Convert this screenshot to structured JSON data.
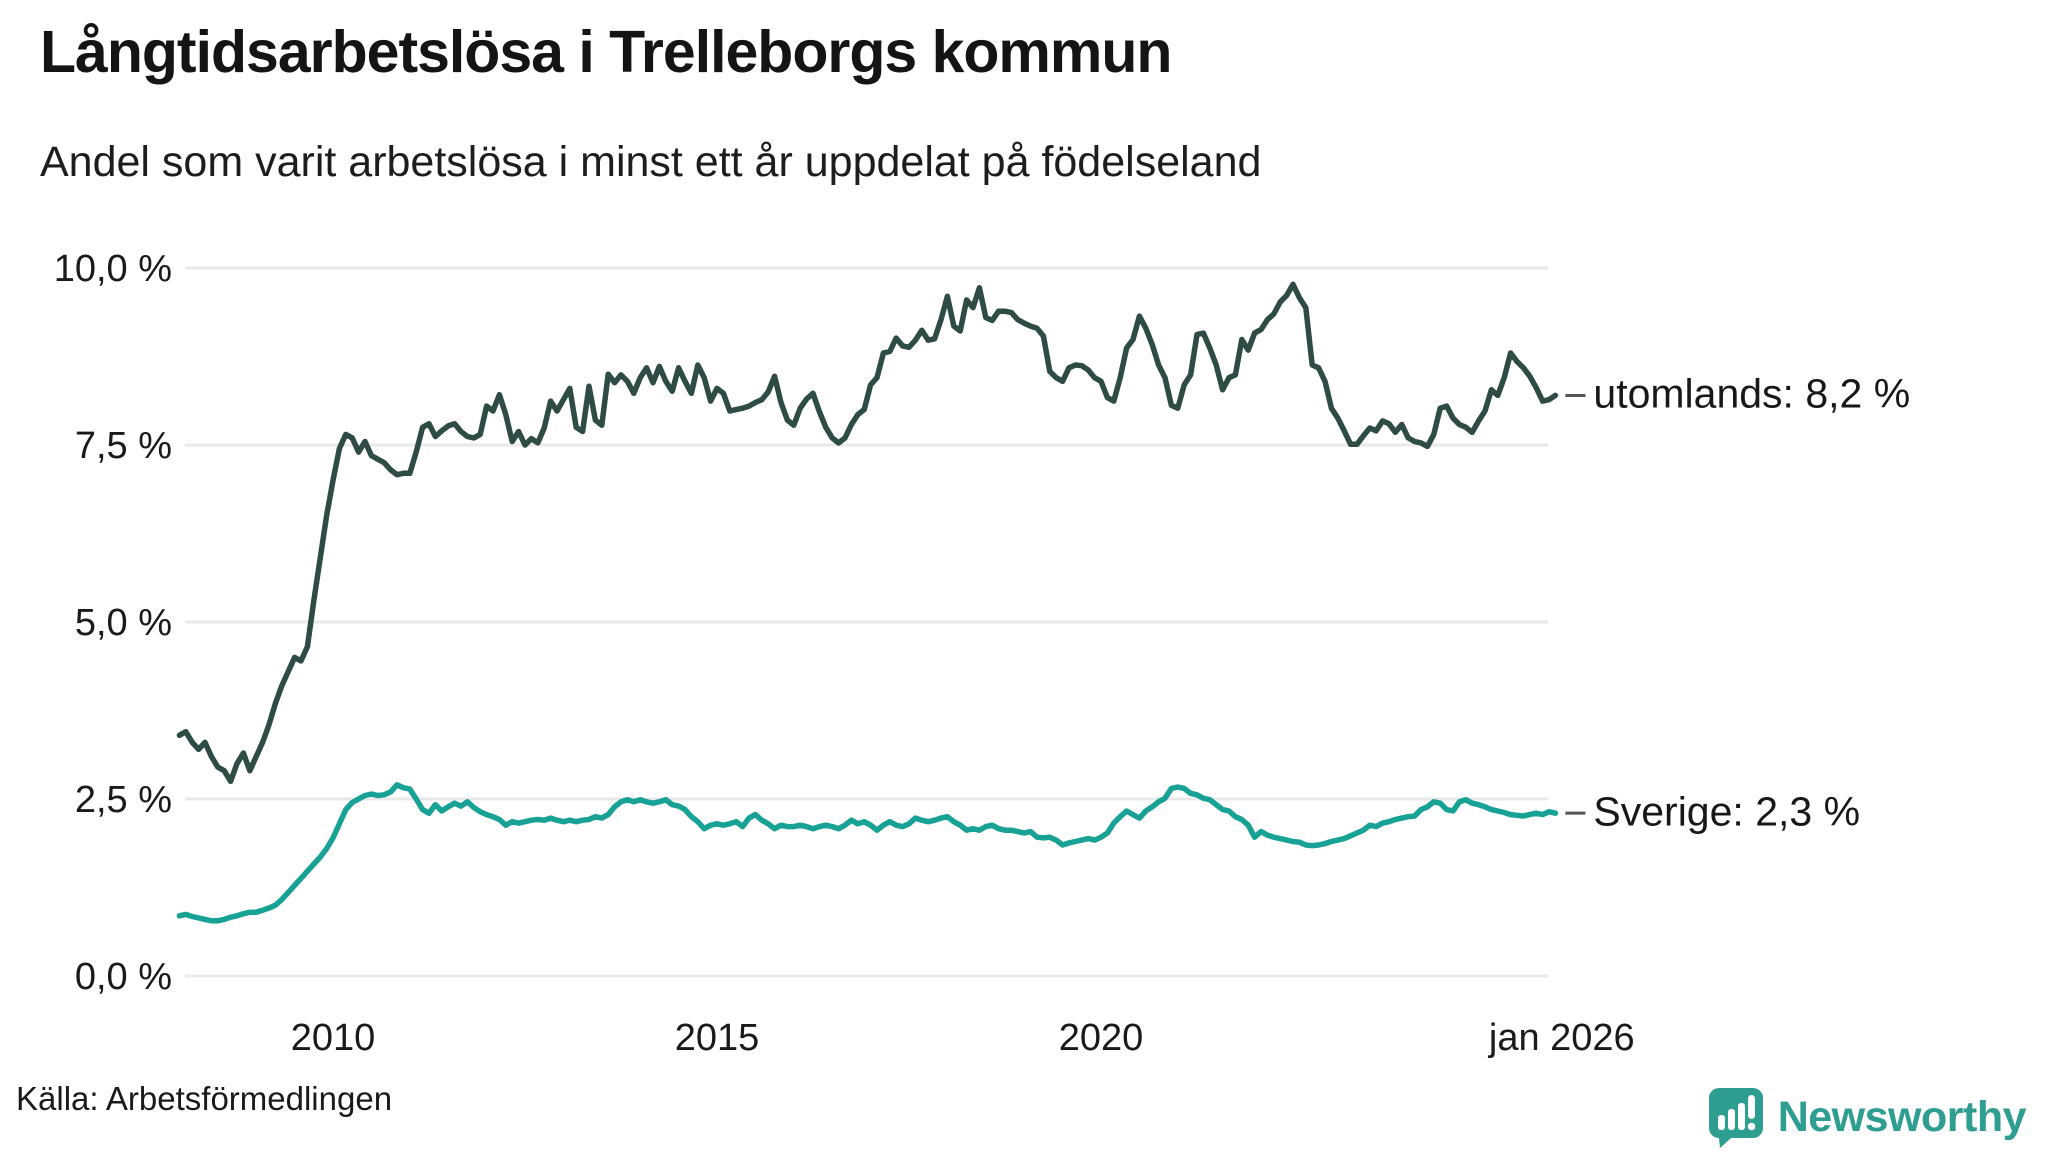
{
  "header": {
    "title": "Långtidsarbetslösa i Trelleborgs kommun",
    "subtitle": "Andel som varit arbetslösa i minst ett år uppdelat på födelseland"
  },
  "footer": {
    "source": "Källa: Arbetsförmedlingen",
    "logo_text": "Newsworthy",
    "logo_color": "#2e9e91"
  },
  "chart_data": {
    "type": "line",
    "title": "Långtidsarbetslösa i Trelleborgs kommun",
    "subtitle": "Andel som varit arbetslösa i minst ett år uppdelat på födelseland",
    "x_start_year": 2008,
    "x_start_month": 1,
    "x_step": "monthly",
    "x_end_label": "jan 2026",
    "ylim": [
      0,
      10.0
    ],
    "grid": "horizontal",
    "gridline_color": "#e9e9ec",
    "legend_position": "end-of-line-labels",
    "y_ticks": [
      {
        "label": "10,0 %",
        "value": 10.0
      },
      {
        "label": "7,5 %",
        "value": 7.5
      },
      {
        "label": "5,0 %",
        "value": 5.0
      },
      {
        "label": "2,5 %",
        "value": 2.5
      },
      {
        "label": "0,0 %",
        "value": 0.0
      }
    ],
    "x_ticks": [
      {
        "label": "2010",
        "t": 2010.0
      },
      {
        "label": "2015",
        "t": 2015.0
      },
      {
        "label": "2020",
        "t": 2020.0
      },
      {
        "label": "jan 2026",
        "t": 2026.0
      }
    ],
    "series": [
      {
        "name": "utomlands",
        "label": "utomlands: 8,2 %",
        "end_value_label": "8,2 %",
        "color": "#2e4b45",
        "values": [
          3.4,
          3.45,
          3.3,
          3.2,
          3.3,
          3.1,
          2.95,
          2.9,
          2.75,
          3.0,
          3.15,
          2.9,
          3.1,
          3.3,
          3.55,
          3.85,
          4.1,
          4.3,
          4.5,
          4.45,
          4.65,
          5.3,
          5.9,
          6.5,
          7.0,
          7.45,
          7.65,
          7.6,
          7.4,
          7.55,
          7.35,
          7.3,
          7.25,
          7.15,
          7.08,
          7.1,
          7.1,
          7.4,
          7.75,
          7.8,
          7.62,
          7.7,
          7.77,
          7.8,
          7.69,
          7.62,
          7.6,
          7.65,
          8.05,
          7.98,
          8.21,
          7.93,
          7.55,
          7.69,
          7.5,
          7.59,
          7.53,
          7.74,
          8.12,
          7.98,
          8.14,
          8.3,
          7.75,
          7.69,
          8.33,
          7.85,
          7.78,
          8.5,
          8.38,
          8.49,
          8.4,
          8.23,
          8.45,
          8.59,
          8.38,
          8.61,
          8.4,
          8.26,
          8.59,
          8.4,
          8.23,
          8.63,
          8.45,
          8.12,
          8.3,
          8.23,
          7.98,
          8.0,
          8.02,
          8.05,
          8.1,
          8.14,
          8.25,
          8.47,
          8.1,
          7.85,
          7.78,
          8.02,
          8.15,
          8.23,
          7.97,
          7.75,
          7.6,
          7.53,
          7.6,
          7.79,
          7.93,
          8.0,
          8.35,
          8.45,
          8.8,
          8.82,
          9.01,
          8.9,
          8.88,
          8.98,
          9.12,
          8.98,
          9.0,
          9.27,
          9.6,
          9.18,
          9.11,
          9.55,
          9.44,
          9.72,
          9.3,
          9.26,
          9.39,
          9.39,
          9.37,
          9.27,
          9.22,
          9.18,
          9.15,
          9.04,
          8.54,
          8.45,
          8.4,
          8.59,
          8.63,
          8.62,
          8.56,
          8.45,
          8.4,
          8.17,
          8.12,
          8.45,
          8.87,
          8.99,
          9.32,
          9.15,
          8.92,
          8.63,
          8.45,
          8.06,
          8.02,
          8.35,
          8.49,
          9.06,
          9.08,
          8.87,
          8.63,
          8.28,
          8.45,
          8.49,
          8.99,
          8.84,
          9.08,
          9.13,
          9.27,
          9.35,
          9.52,
          9.61,
          9.77,
          9.58,
          9.44,
          8.63,
          8.59,
          8.4,
          8.02,
          7.88,
          7.7,
          7.51,
          7.51,
          7.63,
          7.74,
          7.7,
          7.84,
          7.8,
          7.68,
          7.79,
          7.6,
          7.55,
          7.53,
          7.48,
          7.65,
          8.02,
          8.05,
          7.88,
          7.79,
          7.75,
          7.68,
          7.84,
          7.98,
          8.28,
          8.2,
          8.45,
          8.8,
          8.68,
          8.59,
          8.47,
          8.31,
          8.12,
          8.14,
          8.2
        ]
      },
      {
        "name": "Sverige",
        "label": "Sverige: 2,3 %",
        "end_value_label": "2,3 %",
        "color": "#18a296",
        "values": [
          0.85,
          0.87,
          0.84,
          0.82,
          0.8,
          0.78,
          0.78,
          0.8,
          0.83,
          0.85,
          0.88,
          0.9,
          0.9,
          0.93,
          0.96,
          1.0,
          1.08,
          1.18,
          1.28,
          1.38,
          1.48,
          1.58,
          1.68,
          1.8,
          1.95,
          2.15,
          2.35,
          2.45,
          2.5,
          2.55,
          2.57,
          2.55,
          2.56,
          2.6,
          2.7,
          2.66,
          2.64,
          2.5,
          2.35,
          2.3,
          2.42,
          2.33,
          2.39,
          2.44,
          2.4,
          2.46,
          2.38,
          2.32,
          2.28,
          2.25,
          2.21,
          2.13,
          2.18,
          2.16,
          2.18,
          2.2,
          2.21,
          2.2,
          2.23,
          2.2,
          2.18,
          2.2,
          2.18,
          2.2,
          2.21,
          2.25,
          2.23,
          2.28,
          2.39,
          2.46,
          2.49,
          2.46,
          2.49,
          2.46,
          2.44,
          2.46,
          2.49,
          2.42,
          2.4,
          2.35,
          2.25,
          2.18,
          2.08,
          2.13,
          2.15,
          2.13,
          2.15,
          2.18,
          2.11,
          2.23,
          2.28,
          2.2,
          2.15,
          2.08,
          2.13,
          2.11,
          2.11,
          2.13,
          2.11,
          2.08,
          2.11,
          2.13,
          2.11,
          2.08,
          2.13,
          2.2,
          2.15,
          2.18,
          2.13,
          2.06,
          2.13,
          2.18,
          2.13,
          2.11,
          2.15,
          2.23,
          2.2,
          2.18,
          2.2,
          2.23,
          2.25,
          2.18,
          2.13,
          2.06,
          2.08,
          2.06,
          2.11,
          2.13,
          2.08,
          2.06,
          2.06,
          2.04,
          2.02,
          2.04,
          1.96,
          1.95,
          1.96,
          1.92,
          1.85,
          1.88,
          1.9,
          1.92,
          1.94,
          1.92,
          1.96,
          2.02,
          2.16,
          2.25,
          2.33,
          2.28,
          2.23,
          2.33,
          2.39,
          2.46,
          2.51,
          2.65,
          2.67,
          2.65,
          2.58,
          2.56,
          2.51,
          2.49,
          2.42,
          2.35,
          2.33,
          2.25,
          2.21,
          2.13,
          1.96,
          2.04,
          1.99,
          1.96,
          1.94,
          1.92,
          1.9,
          1.89,
          1.85,
          1.84,
          1.85,
          1.87,
          1.9,
          1.92,
          1.94,
          1.98,
          2.02,
          2.06,
          2.13,
          2.11,
          2.16,
          2.18,
          2.21,
          2.23,
          2.25,
          2.26,
          2.35,
          2.39,
          2.46,
          2.44,
          2.35,
          2.33,
          2.46,
          2.49,
          2.44,
          2.42,
          2.39,
          2.35,
          2.33,
          2.31,
          2.28,
          2.27,
          2.26,
          2.28,
          2.3,
          2.28,
          2.32,
          2.3
        ]
      }
    ]
  }
}
